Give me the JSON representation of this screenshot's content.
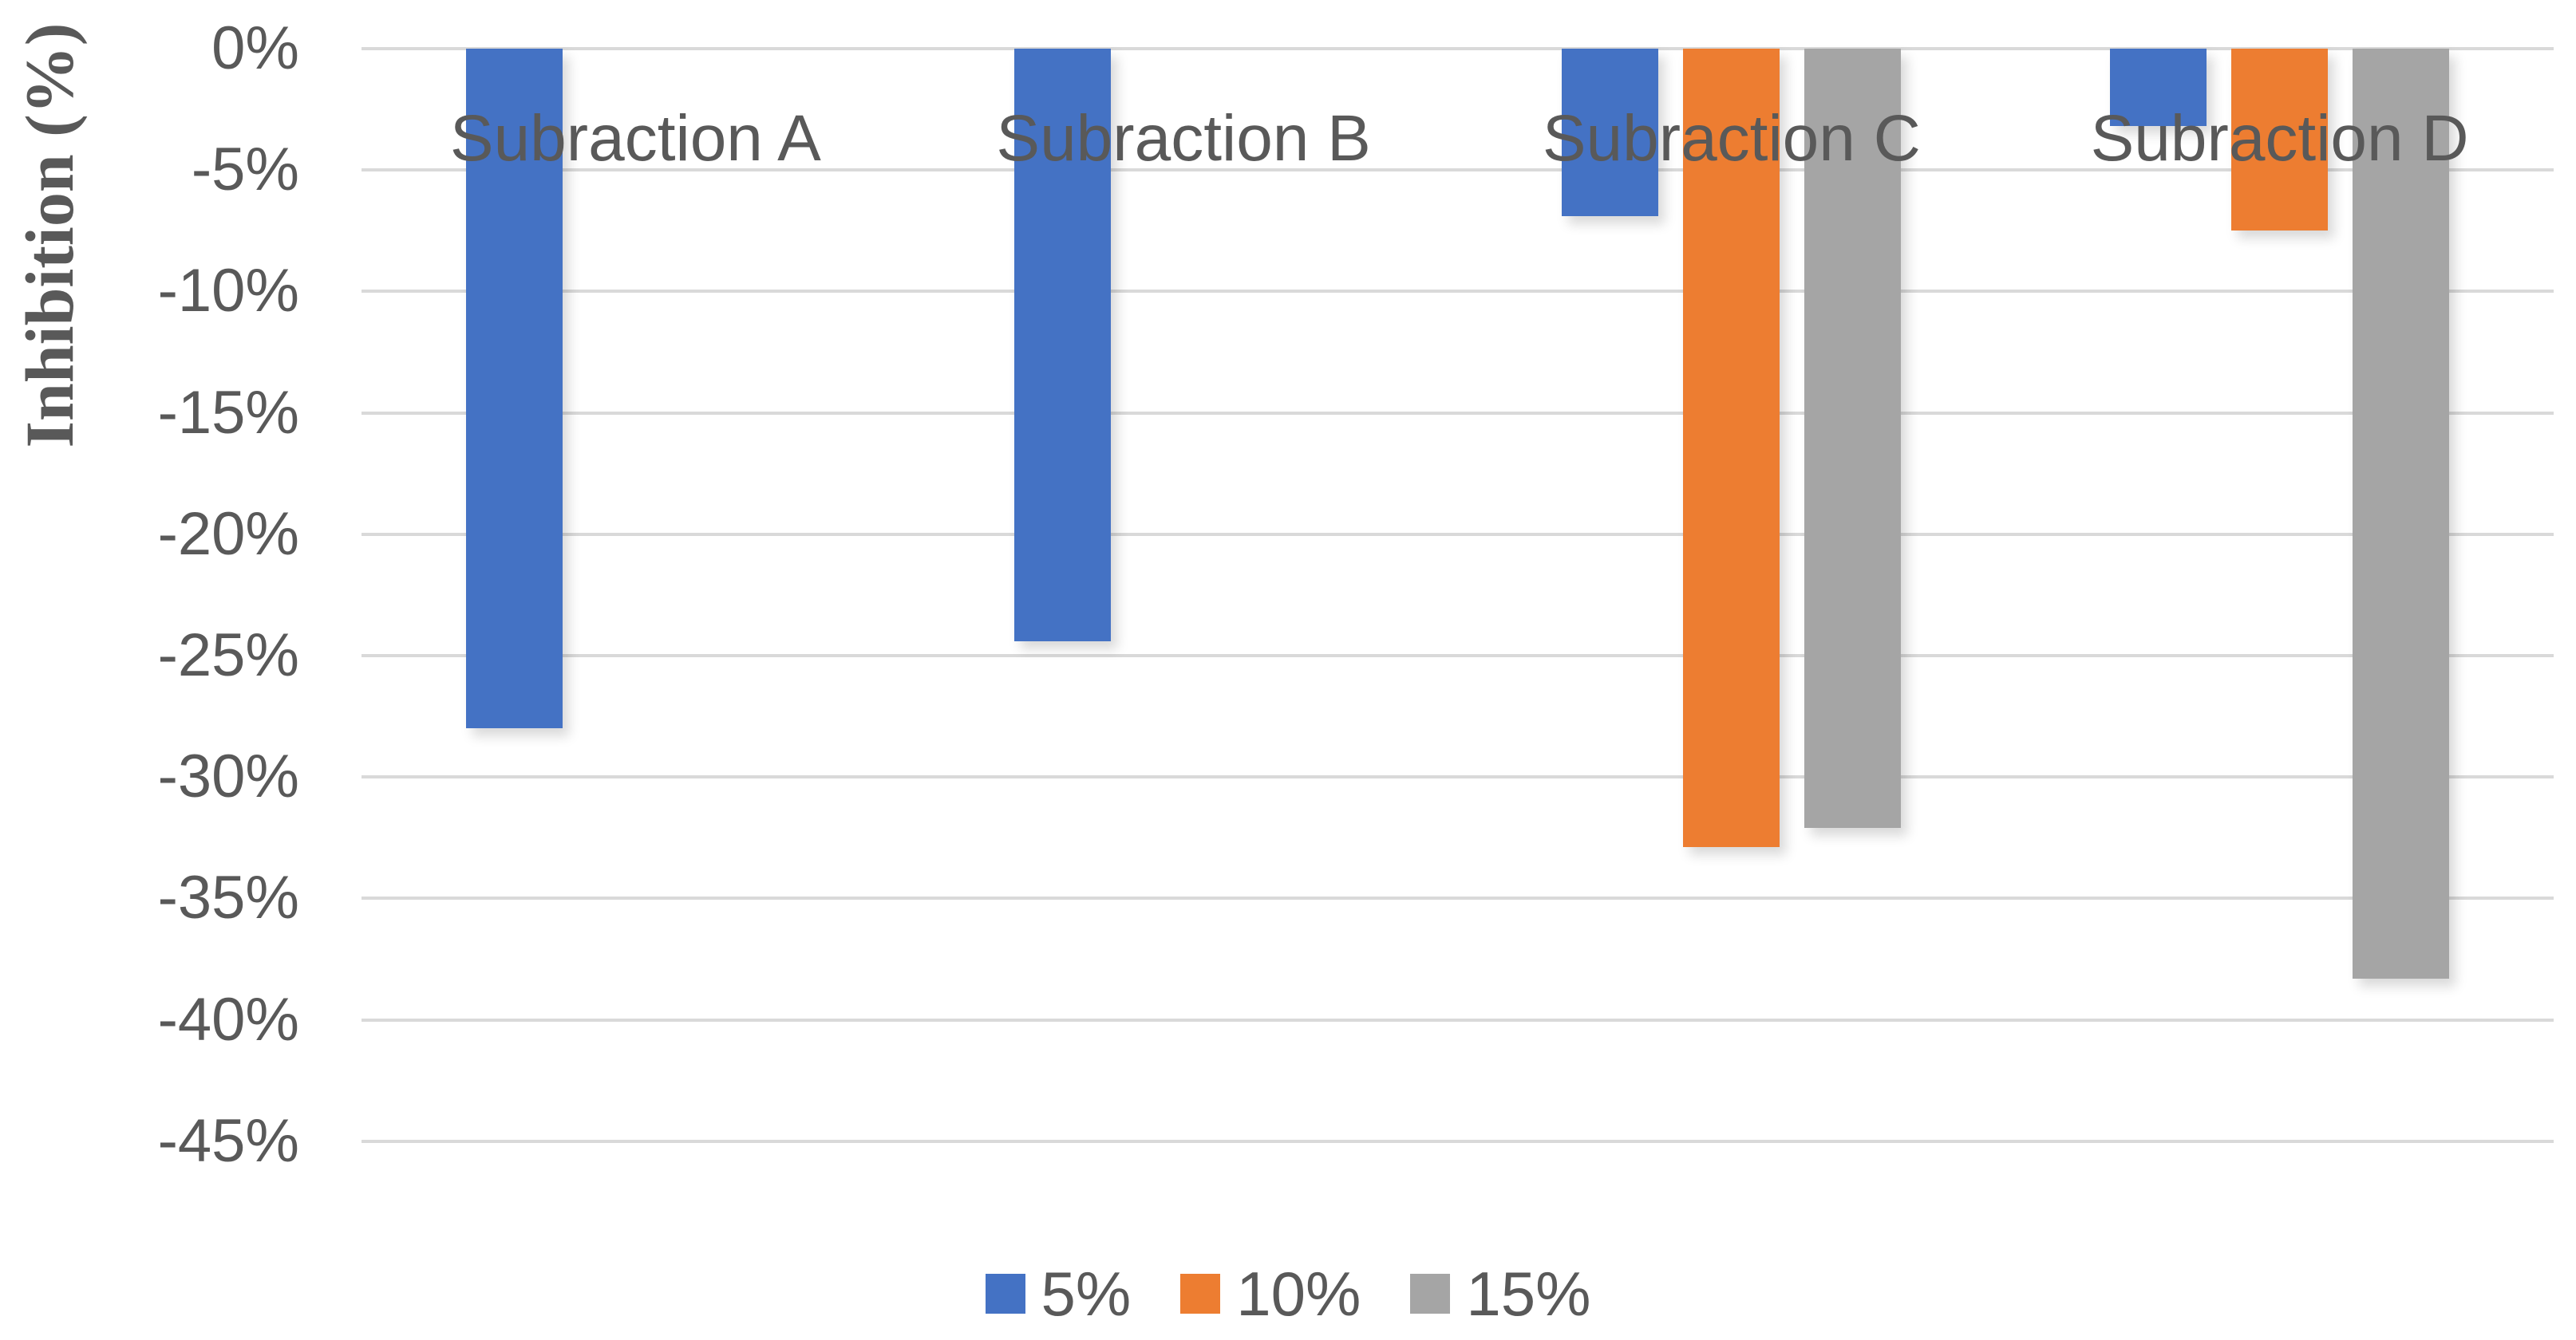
{
  "chart_data": {
    "type": "bar",
    "title": "",
    "xlabel": "",
    "ylabel": "Inhibition (%)",
    "categories": [
      "Subraction A",
      "Subraction B",
      "Subraction C",
      "Subraction D"
    ],
    "series": [
      {
        "name": "5%",
        "color": "#4472C4",
        "values": [
          -28.0,
          -24.4,
          -6.9,
          -3.2
        ]
      },
      {
        "name": "10%",
        "color": "#ED7D31",
        "values": [
          null,
          null,
          -32.9,
          -7.5
        ]
      },
      {
        "name": "15%",
        "color": "#A5A5A5",
        "values": [
          null,
          null,
          -32.1,
          -38.3
        ]
      }
    ],
    "y_axis": {
      "min": -45,
      "max": 0,
      "tick_step": -5,
      "tick_labels": [
        "0%",
        "-5%",
        "-10%",
        "-15%",
        "-20%",
        "-25%",
        "-30%",
        "-35%",
        "-40%",
        "-45%"
      ]
    },
    "legend": {
      "position": "bottom",
      "entries": [
        "5%",
        "10%",
        "15%"
      ]
    },
    "grid": true,
    "background": "#FFFFFF",
    "text_color": "#595959",
    "gridline_color": "#D9D9D9"
  }
}
